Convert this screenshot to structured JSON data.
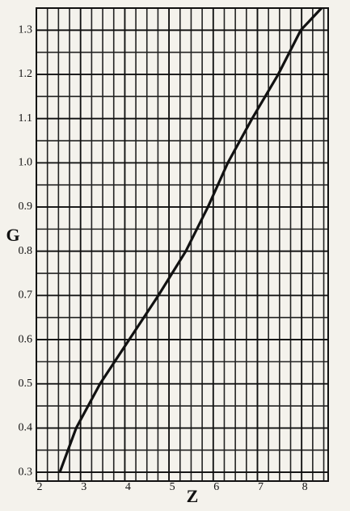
{
  "chart_data": {
    "type": "line",
    "x_label": "Z",
    "y_label": "G",
    "x": [
      2.53,
      2.9,
      3.44,
      4.1,
      4.76,
      5.38,
      5.88,
      6.33,
      6.88,
      7.47,
      7.98,
      8.45
    ],
    "series": [
      {
        "color": "#111111",
        "values": [
          0.3,
          0.4,
          0.5,
          0.6,
          0.7,
          0.8,
          0.9,
          1.0,
          1.1,
          1.2,
          1.3,
          1.35
        ]
      }
    ],
    "xlim": [
      2,
      8.6
    ],
    "ylim": [
      0.28,
      1.35
    ],
    "xticks": [
      2,
      3,
      4,
      5,
      6,
      7,
      8
    ],
    "yticks": [
      0.3,
      0.4,
      0.5,
      0.6,
      0.7,
      0.8,
      0.9,
      {
        "value": 1,
        "label": "1.0"
      },
      1.1,
      1.2,
      1.3
    ],
    "grid": true,
    "minor_grid_step": {
      "x": 0.25,
      "y": 0.05
    }
  }
}
